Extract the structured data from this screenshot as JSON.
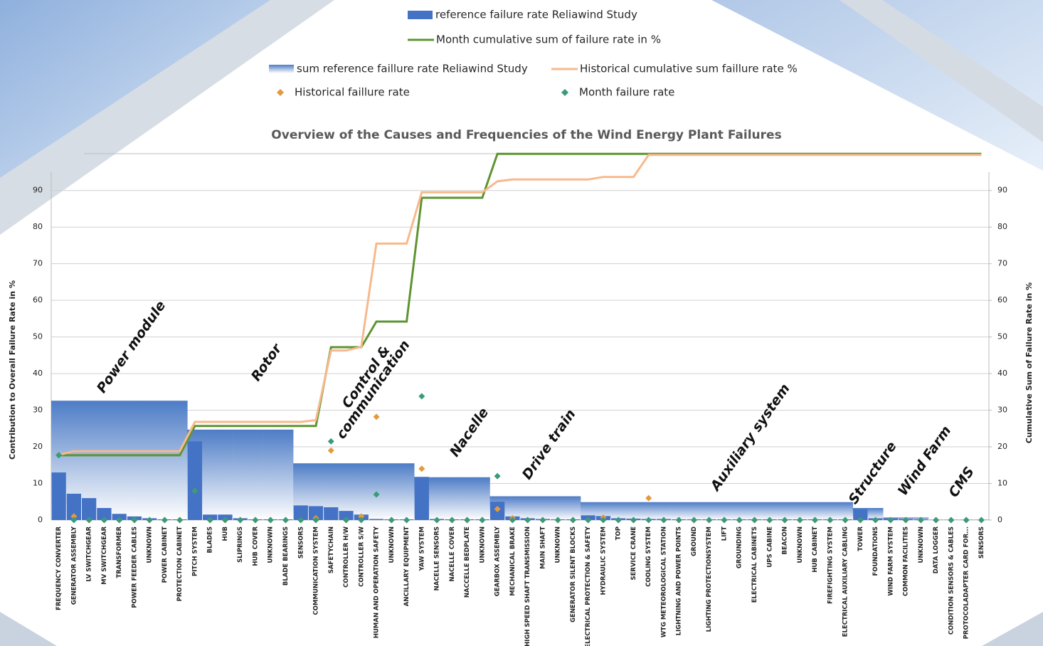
{
  "chart_data": {
    "type": "bar",
    "title": "Overview of the Causes and Frequencies of the Wind Energy Plant Failures",
    "y_label": "Contribution to Overall Failure Rate in %",
    "y2_label": "Cumulative Sum of Failure Rate in %",
    "categories": [
      "FREQUENCY CONVERTER",
      "GENERATOR ASSEMBLY",
      "LV SWITCHGEAR",
      "MV SWITCHGEAR",
      "TRANSFORMER",
      "POWER FEEDER CABLES",
      "UNKNOWN",
      "POWER CABINET",
      "PROTECTION CABINET",
      "PITCH SYSTEM",
      "BLADES",
      "HUB",
      "SLIPRINGS",
      "HUB COVER",
      "UNKNOWN",
      "BLADE BEARINGS",
      "SENSORS",
      "COMMUNICATION SYSTEM",
      "SAFETYCHAIN",
      "CONTROLLER H/W",
      "CONTROLLER S/W",
      "HUMAN AND OPERATION SAFETY",
      "UNKNOWN",
      "ANCILLARY EQUIPMENT",
      "YAW SYSTEM",
      "NACELLE SENSORS",
      "NACELLE COVER",
      "NACCELLE BEDPLATE",
      "UNKNOWN",
      "GEARBOX ASSEMBLY",
      "MECHANICAL BRAKE",
      "HIGH SPEED SHAFT TRANSMISSION",
      "MAIN SHAFT",
      "UNKNOWN",
      "GENERATOR SILENT BLOCKS",
      "ELECTRICAL PROTECTION & SAFETY",
      "HYDRAULIC SYSTEM",
      "TOP",
      "SERVICE CRANE",
      "COOLING SYSTEM",
      "WTG METEOROLOGICAL STATION",
      "LIGHTNING AND POWER POINTS",
      "GROUND",
      "LIGHTING PROTECTIONSYSTEM",
      "LIFT",
      "GROUNDING",
      "ELECTRICAL CABINETS",
      "UPS CABINE",
      "BEACON",
      "UNKNOWN",
      "HUB CABINET",
      "FIREFIGHTING SYSTEM",
      "ELECTRICAL AUXILIARY CABLING",
      "TOWER",
      "FOUNDATIONS",
      "WIND FARM SYSTEM",
      "COMMON FACILITIES",
      "UNKNOWN",
      "DATA LOGGER",
      "CONDITION SENSORS & CABLES",
      "PROTOCOLADAPTER CARD FOR...",
      "SENSORS"
    ],
    "series": [
      {
        "name": "reference failure rate Reliawind Study",
        "type": "bar",
        "color": "#4472c4",
        "values": [
          13,
          7.2,
          6,
          3.3,
          1.7,
          1,
          0.5,
          0.2,
          0.2,
          21.5,
          1.5,
          1.5,
          0.5,
          0.2,
          0.2,
          0.2,
          4,
          3.8,
          3.5,
          2.5,
          1.5,
          0.3,
          0.2,
          0.2,
          11.8,
          0.3,
          0.2,
          0.2,
          0.2,
          5,
          1,
          0.5,
          0.3,
          0.2,
          0.2,
          1.3,
          1.1,
          0.5,
          0.4,
          0.3,
          0.3,
          0.2,
          0.2,
          0.2,
          0.2,
          0.2,
          0.2,
          0.2,
          0.2,
          0.2,
          0.2,
          0.2,
          0.2,
          3,
          0.5,
          0.5,
          0.3,
          0.2,
          0.1,
          0.1,
          0.1,
          0.1
        ]
      },
      {
        "name": "Month cumulative sum of failure rate in %",
        "type": "line",
        "axis": "y2",
        "color": "#5e9430",
        "values": [
          17.7,
          17.7,
          17.7,
          17.7,
          17.7,
          17.7,
          17.7,
          17.7,
          17.7,
          25.7,
          25.7,
          25.7,
          25.7,
          25.7,
          25.7,
          25.7,
          25.7,
          25.7,
          47.2,
          47.2,
          47.2,
          54.2,
          54.2,
          54.2,
          88,
          88,
          88,
          88,
          88,
          100,
          100,
          100,
          100,
          100,
          100,
          100,
          100,
          100,
          100,
          100,
          100,
          100,
          100,
          100,
          100,
          100,
          100,
          100,
          100,
          100,
          100,
          100,
          100,
          100,
          100,
          100,
          100,
          100,
          100,
          100,
          100,
          100
        ]
      },
      {
        "name": "sum reference faillure rate Reliawind Study",
        "type": "bar",
        "color": "#5b86c9",
        "values": [
          32.6,
          32.6,
          32.6,
          32.6,
          32.6,
          32.6,
          32.6,
          32.6,
          32.6,
          24.7,
          24.7,
          24.7,
          24.7,
          24.7,
          24.7,
          24.7,
          15.5,
          15.5,
          15.5,
          15.5,
          15.5,
          15.5,
          15.5,
          15.5,
          11.7,
          11.7,
          11.7,
          11.7,
          11.7,
          6.5,
          6.5,
          6.5,
          6.5,
          6.5,
          6.5,
          4.9,
          4.9,
          4.9,
          4.9,
          4.9,
          4.9,
          4.9,
          4.9,
          4.9,
          4.9,
          4.9,
          4.9,
          4.9,
          4.9,
          4.9,
          4.9,
          4.9,
          4.9,
          3.3,
          3.3,
          0.7,
          0.7,
          0.7,
          0.1,
          0.1,
          0.1,
          0.1
        ]
      },
      {
        "name": "Historical cumulative sum faillure rate %",
        "type": "line",
        "axis": "y2",
        "color": "#f7b98c",
        "values": [
          17.8,
          18.8,
          18.8,
          18.8,
          18.8,
          18.8,
          18.8,
          18.8,
          18.8,
          26.8,
          26.8,
          26.8,
          26.8,
          26.8,
          26.8,
          26.8,
          26.8,
          27.3,
          46.3,
          46.3,
          47.3,
          75.5,
          75.5,
          75.5,
          89.5,
          89.5,
          89.5,
          89.5,
          89.5,
          92.5,
          93,
          93,
          93,
          93,
          93,
          93,
          93.7,
          93.7,
          93.7,
          99.7,
          99.7,
          99.7,
          99.7,
          99.7,
          99.7,
          99.7,
          99.7,
          99.7,
          99.7,
          99.7,
          99.7,
          99.7,
          99.7,
          99.7,
          99.7,
          99.7,
          99.7,
          99.7,
          99.7,
          99.7,
          99.7,
          99.7
        ]
      },
      {
        "name": "Historical faillure rate",
        "type": "scatter",
        "color": "#e39a3c",
        "values": [
          17.8,
          1,
          0,
          0,
          0,
          0,
          0,
          0,
          0,
          8,
          0,
          0,
          0,
          0,
          0,
          0,
          0,
          0.5,
          19,
          0,
          1,
          28.2,
          0,
          0,
          14,
          0,
          0,
          0,
          0,
          3,
          0.5,
          0,
          0,
          0,
          0,
          0,
          0.7,
          0,
          0,
          6,
          0,
          0,
          0,
          0,
          0,
          0,
          0,
          0,
          0,
          0,
          0,
          0,
          0,
          0,
          0,
          0,
          0,
          0,
          0,
          0,
          0,
          0
        ]
      },
      {
        "name": "Month failure rate",
        "type": "scatter",
        "color": "#3a9a7a",
        "values": [
          17.7,
          0,
          0,
          0,
          0,
          0,
          0,
          0,
          0,
          8,
          0,
          0,
          0,
          0,
          0,
          0,
          0,
          0,
          21.5,
          0,
          0,
          7,
          0,
          0,
          33.8,
          0,
          0,
          0,
          0,
          12,
          0,
          0,
          0,
          0,
          0,
          0,
          0,
          0,
          0,
          0,
          0,
          0,
          0,
          0,
          0,
          0,
          0,
          0,
          0,
          0,
          0,
          0,
          0,
          0,
          0,
          0,
          0,
          0,
          0,
          0,
          0,
          0
        ]
      }
    ],
    "annotations": [
      "Power module",
      "Rotor",
      "Control &",
      "communication",
      "Nacelle",
      "Drive train",
      "Auxiliary system",
      "Structure",
      "Wind Farm",
      "CMS"
    ],
    "ylim": [
      0,
      95
    ],
    "yticks": [
      0,
      10,
      20,
      30,
      40,
      50,
      60,
      70,
      80,
      90
    ],
    "y2lim": [
      0,
      95
    ],
    "y2ticks": [
      0,
      10,
      20,
      30,
      40,
      50,
      60,
      70,
      80,
      90
    ],
    "grid": true
  }
}
